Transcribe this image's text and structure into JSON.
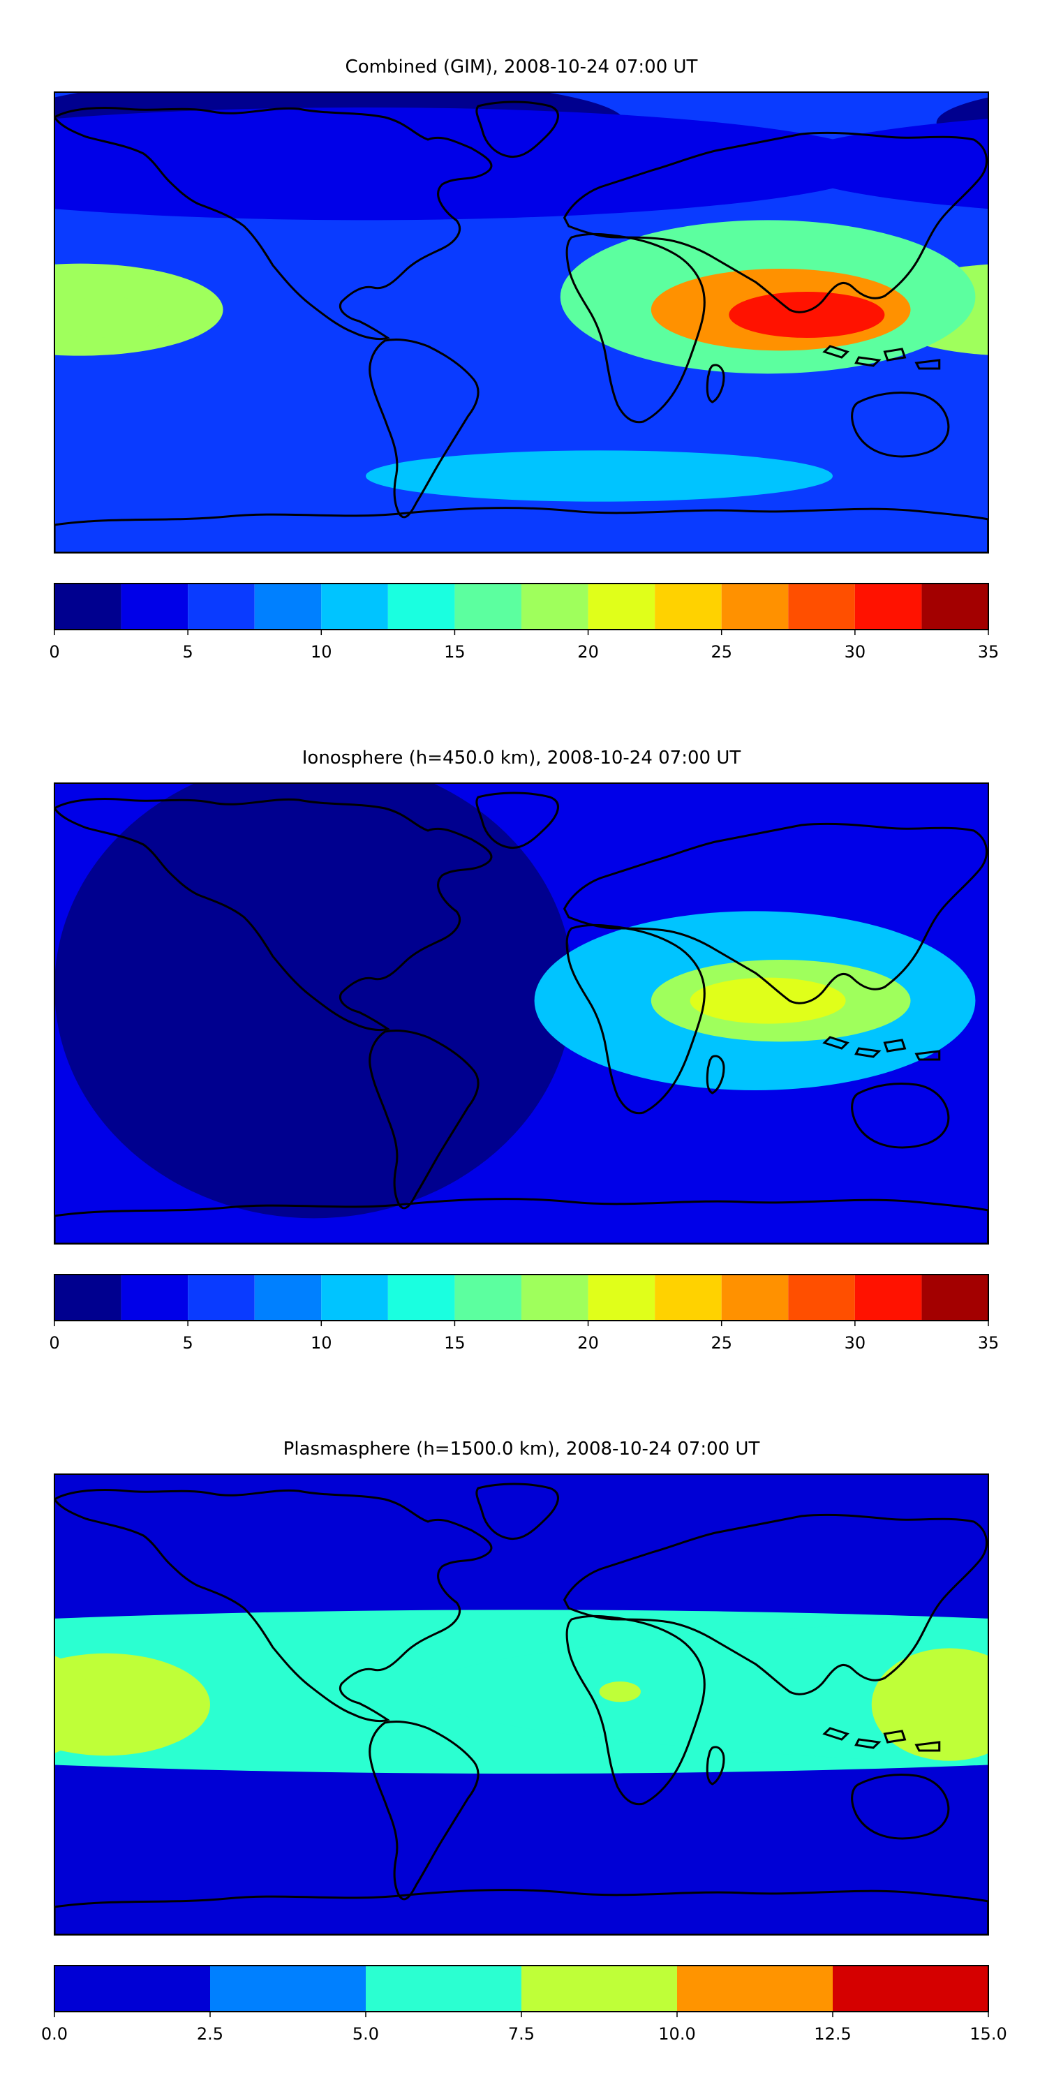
{
  "chart_data": [
    {
      "type": "heatmap",
      "title": "Combined (GIM), 2008-10-24 07:00 UT",
      "colorbar": {
        "levels": [
          0,
          2.5,
          5,
          7.5,
          10,
          12.5,
          15,
          17.5,
          20,
          22.5,
          25,
          27.5,
          30,
          32.5,
          35
        ],
        "tick_labels": [
          "0",
          "5",
          "10",
          "15",
          "20",
          "25",
          "30",
          "35"
        ],
        "tick_values": [
          0,
          5,
          10,
          15,
          20,
          25,
          30,
          35
        ],
        "colors": [
          "#00008f",
          "#0000e8",
          "#0a3bff",
          "#0080ff",
          "#00c4ff",
          "#1affe0",
          "#5cff9f",
          "#9fff5c",
          "#e0ff1a",
          "#ffd200",
          "#ff9100",
          "#ff4f00",
          "#ff1200",
          "#a30000"
        ]
      },
      "regions": [
        {
          "name": "background",
          "lon": 0,
          "lat": 0,
          "value": 6.3
        },
        {
          "name": "north-polar-low",
          "lon": -80,
          "lat": 78,
          "value": 1.5
        },
        {
          "name": "north-mid",
          "lon": -60,
          "lat": 62,
          "value": 3.5
        },
        {
          "name": "pacific-ridge",
          "lon": -170,
          "lat": 5,
          "value": 17.5
        },
        {
          "name": "pacific-peak",
          "lon": -160,
          "lat": 2,
          "value": 19
        },
        {
          "name": "asia-peak-outer",
          "lon": 95,
          "lat": 10,
          "value": 16
        },
        {
          "name": "asia-peak",
          "lon": 100,
          "lat": 5,
          "value": 27
        },
        {
          "name": "asia-core",
          "lon": 110,
          "lat": 3,
          "value": 30
        },
        {
          "name": "south-band",
          "lon": 30,
          "lat": -60,
          "value": 11
        }
      ]
    },
    {
      "type": "heatmap",
      "title": "Ionosphere  (h=450.0 km), 2008-10-24 07:00 UT",
      "colorbar": {
        "levels": [
          0,
          2.5,
          5,
          7.5,
          10,
          12.5,
          15,
          17.5,
          20,
          22.5,
          25,
          27.5,
          30,
          32.5,
          35
        ],
        "tick_labels": [
          "0",
          "5",
          "10",
          "15",
          "20",
          "25",
          "30",
          "35"
        ],
        "tick_values": [
          0,
          5,
          10,
          15,
          20,
          25,
          30,
          35
        ],
        "colors": [
          "#00008f",
          "#0000e8",
          "#0a3bff",
          "#0080ff",
          "#00c4ff",
          "#1affe0",
          "#5cff9f",
          "#9fff5c",
          "#e0ff1a",
          "#ffd200",
          "#ff9100",
          "#ff4f00",
          "#ff1200",
          "#a30000"
        ]
      },
      "regions": [
        {
          "name": "background",
          "lon": 0,
          "lat": 0,
          "value": 3.5
        },
        {
          "name": "americas-low",
          "lon": -80,
          "lat": 10,
          "value": 1.5
        },
        {
          "name": "asia-outer",
          "lon": 90,
          "lat": 5,
          "value": 11
        },
        {
          "name": "asia-peak",
          "lon": 100,
          "lat": 5,
          "value": 18.5
        },
        {
          "name": "asia-core",
          "lon": 95,
          "lat": 5,
          "value": 21
        }
      ]
    },
    {
      "type": "heatmap",
      "title": "Plasmasphere (h=1500.0 km), 2008-10-24 07:00 UT",
      "colorbar": {
        "levels": [
          0.0,
          2.5,
          5.0,
          7.5,
          10.0,
          12.5,
          15.0
        ],
        "tick_labels": [
          "0.0",
          "2.5",
          "5.0",
          "7.5",
          "10.0",
          "12.5",
          "15.0"
        ],
        "tick_values": [
          0.0,
          2.5,
          5.0,
          7.5,
          10.0,
          12.5,
          15.0
        ],
        "colors": [
          "#0000d5",
          "#0080ff",
          "#2bffd1",
          "#bfff38",
          "#ff9400",
          "#d50000"
        ]
      },
      "regions": [
        {
          "name": "background",
          "lon": 0,
          "lat": 0,
          "value": 1.5
        },
        {
          "name": "equatorial-band",
          "lon": 0,
          "lat": 5,
          "value": 6.3
        },
        {
          "name": "pacific-high",
          "lon": -160,
          "lat": 0,
          "value": 8.5
        },
        {
          "name": "west-pacific-high",
          "lon": 165,
          "lat": 0,
          "value": 8.5
        },
        {
          "name": "africa-spot",
          "lon": 38,
          "lat": 5,
          "value": 8.5
        }
      ]
    }
  ]
}
